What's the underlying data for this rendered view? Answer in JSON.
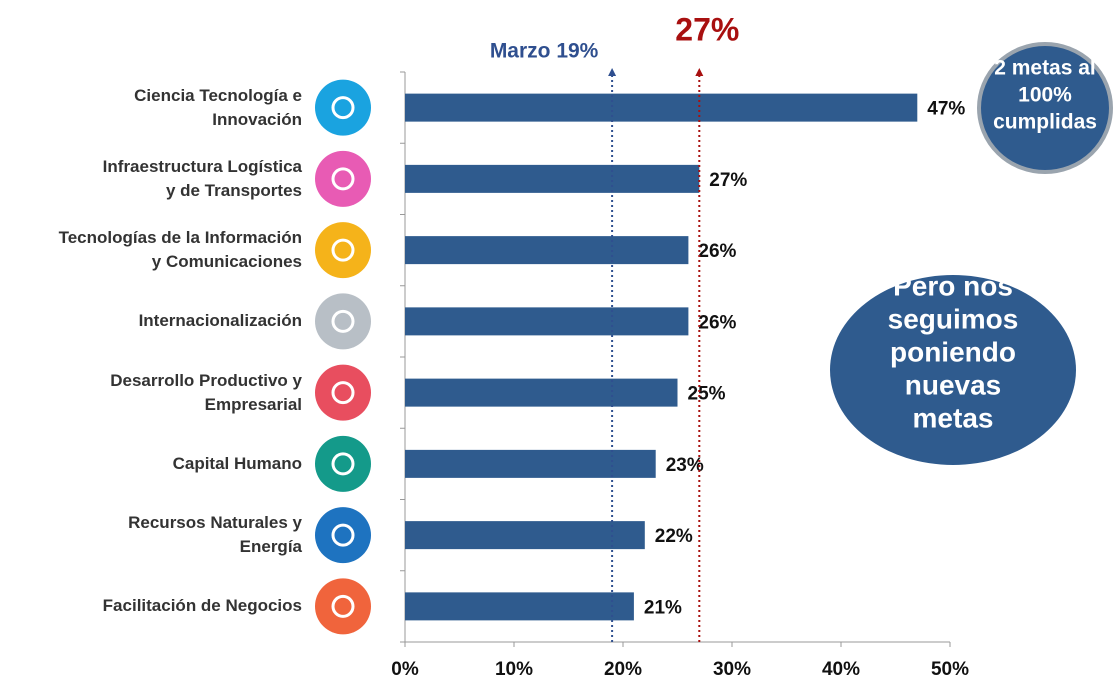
{
  "chart_data": {
    "type": "bar",
    "orientation": "horizontal",
    "categories": [
      "Ciencia Tecnología e\nInnovación",
      "Infraestructura Logística\ny de Transportes",
      "Tecnologías de la Información\ny Comunicaciones",
      "Internacionalización",
      "Desarrollo Productivo y\nEmpresarial",
      "Capital Humano",
      "Recursos Naturales y\nEnergía",
      "Facilitación de Negocios"
    ],
    "values": [
      47,
      27,
      26,
      26,
      25,
      23,
      22,
      21
    ],
    "value_labels": [
      "47%",
      "27%",
      "26%",
      "26%",
      "25%",
      "23%",
      "22%",
      "21%"
    ],
    "color": "#2f5b8e",
    "xlim": [
      0,
      50
    ],
    "xticks": [
      {
        "value": 0,
        "label": "0%"
      },
      {
        "value": 10,
        "label": "10%"
      },
      {
        "value": 20,
        "label": "20%"
      },
      {
        "value": 30,
        "label": "30%"
      },
      {
        "value": 40,
        "label": "40%"
      },
      {
        "value": 50,
        "label": "50%"
      }
    ],
    "reference_lines": [
      {
        "value": 19,
        "label": "Marzo 19%",
        "color": "#2f4f8f"
      },
      {
        "value": 27,
        "label": "27%",
        "color": "#a81010"
      }
    ],
    "annotations": [
      "2 metas al\n100%\ncumplidas",
      "Pero nos\nseguimos\nponiendo\nnuevas metas"
    ]
  }
}
